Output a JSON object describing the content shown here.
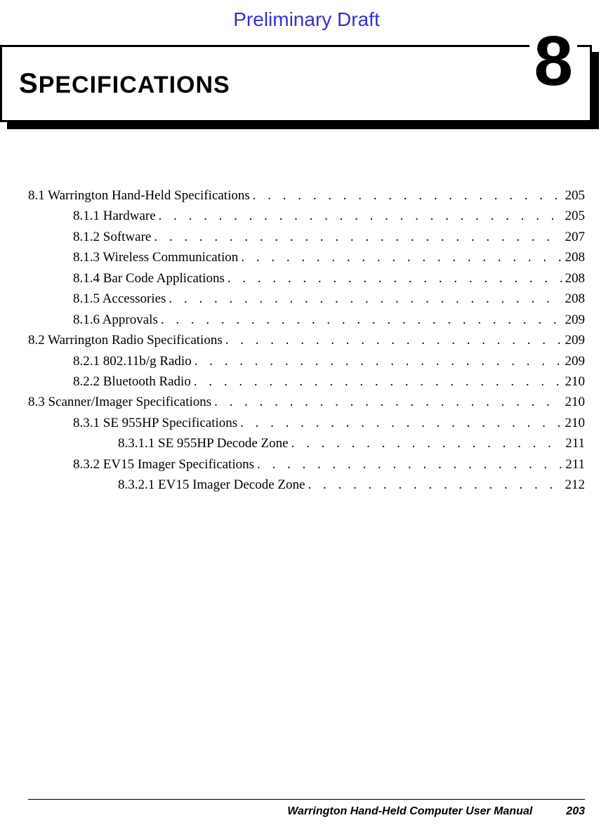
{
  "draft_label": "Preliminary Draft",
  "chapter": {
    "title_first": "S",
    "title_rest": "PECIFICATIONS",
    "number": "8"
  },
  "toc": [
    {
      "level": 1,
      "label": "8.1 Warrington Hand-Held Specifications",
      "page": "205"
    },
    {
      "level": 2,
      "label": "8.1.1 Hardware",
      "page": "205"
    },
    {
      "level": 2,
      "label": "8.1.2 Software",
      "page": "207"
    },
    {
      "level": 2,
      "label": "8.1.3 Wireless Communication",
      "page": "208"
    },
    {
      "level": 2,
      "label": "8.1.4 Bar Code Applications",
      "page": "208"
    },
    {
      "level": 2,
      "label": "8.1.5 Accessories",
      "page": "208"
    },
    {
      "level": 2,
      "label": "8.1.6 Approvals",
      "page": "209"
    },
    {
      "level": 1,
      "label": "8.2 Warrington Radio Specifications",
      "page": "209"
    },
    {
      "level": 2,
      "label": "8.2.1 802.11b/g Radio",
      "page": "209"
    },
    {
      "level": 2,
      "label": "8.2.2 Bluetooth Radio",
      "page": "210"
    },
    {
      "level": 1,
      "label": "8.3 Scanner/Imager Specifications",
      "page": "210"
    },
    {
      "level": 2,
      "label": "8.3.1 SE 955HP Specifications",
      "page": "210"
    },
    {
      "level": 3,
      "label": "8.3.1.1 SE 955HP Decode Zone",
      "page": "211"
    },
    {
      "level": 2,
      "label": "8.3.2 EV15 Imager Specifications",
      "page": "211"
    },
    {
      "level": 3,
      "label": "8.3.2.1 EV15 Imager Decode Zone",
      "page": "212"
    }
  ],
  "footer": {
    "manual_title": "Warrington Hand-Held Computer User Manual",
    "page_number": "203"
  },
  "colors": {
    "draft_text": "#3333cc",
    "text": "#000000",
    "background": "#ffffff"
  },
  "typography": {
    "body_family": "Times New Roman",
    "header_family": "Trebuchet MS",
    "body_size_pt": 14,
    "chapter_title_size_pt": 30,
    "chapter_number_size_pt": 75,
    "draft_size_pt": 21
  }
}
